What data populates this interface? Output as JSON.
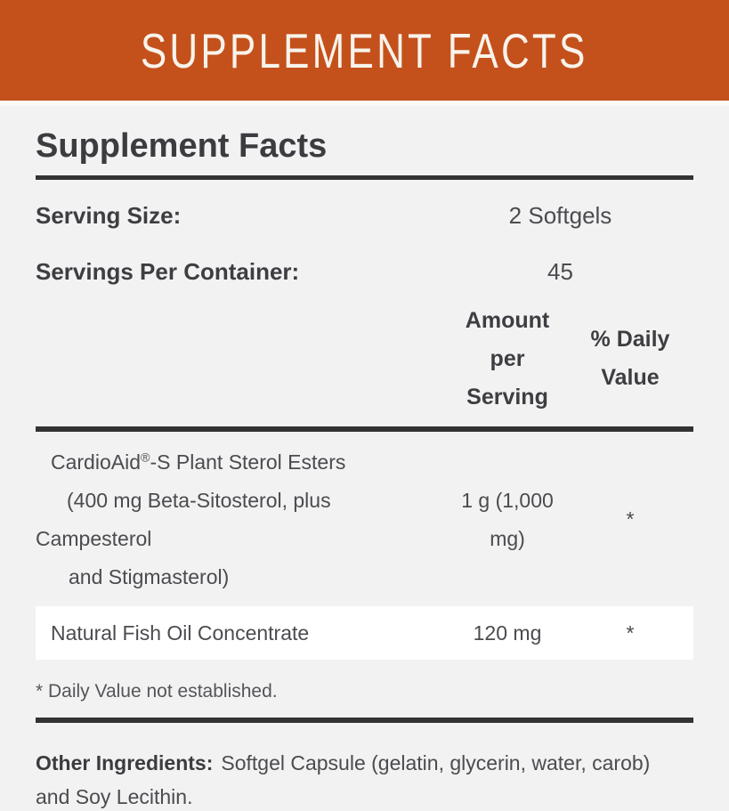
{
  "banner": {
    "title": "SUPPLEMENT FACTS"
  },
  "colors": {
    "banner_bg": "#c4511b",
    "banner_text": "#f8f3ec",
    "page_bg": "#f2f2f2",
    "rule": "#333333",
    "heading_text": "#3b3b40",
    "body_text": "#4b4b50",
    "row_stripe": "#ffffff"
  },
  "panel": {
    "title": "Supplement Facts",
    "serving_size": {
      "label": "Serving Size:",
      "value": "2 Softgels"
    },
    "servings_per_container": {
      "label": "Servings Per Container:",
      "value": "45"
    },
    "columns": {
      "amount_header": "Amount per Serving",
      "daily_value_header": "% Daily Value"
    },
    "rows": [
      {
        "brand": "CardioAid",
        "reg_mark": "®",
        "name_rest": "-S Plant Sterol Esters",
        "wrap_lines": [
          "(400 mg Beta-Sitosterol, plus",
          "Campesterol",
          "and Stigmasterol)"
        ],
        "amount": "1 g (1,000 mg)",
        "daily_value": "*"
      },
      {
        "name": "Natural Fish Oil Concentrate",
        "amount": "120 mg",
        "daily_value": "*"
      }
    ],
    "footnote": "* Daily Value not established.",
    "other_ingredients": {
      "label": "Other Ingredients:",
      "text": "Softgel Capsule (gelatin, glycerin, water, carob) and Soy Lecithin."
    }
  }
}
